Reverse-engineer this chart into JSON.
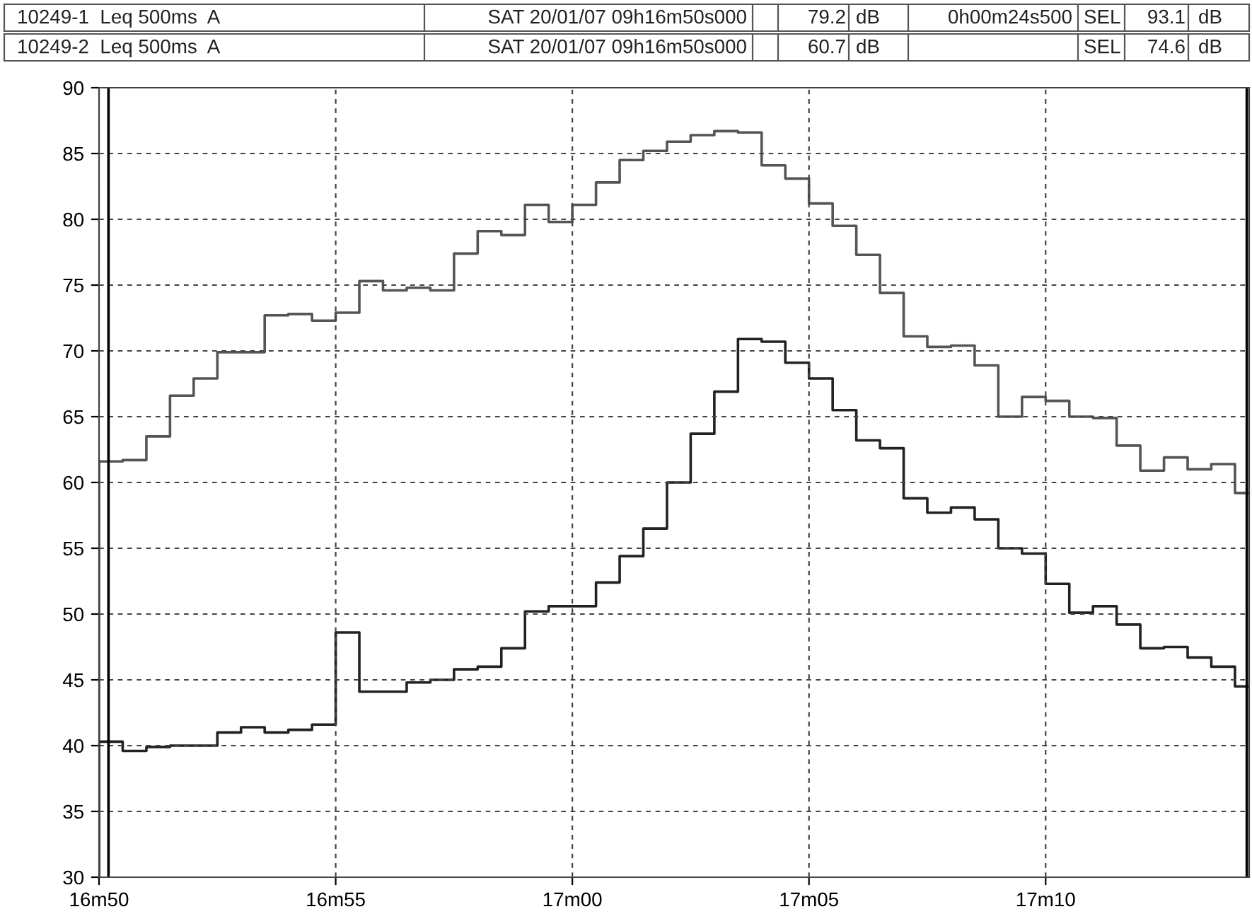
{
  "chart_data": {
    "type": "step",
    "annotations": [
      "10249-1  Leq 500ms  A",
      "SAT 20/01/07 09h16m50s000",
      "79.2",
      "dB",
      "0h00m24s500",
      "SEL",
      "93.1",
      "dB",
      "10249-2  Leq 500ms  A",
      "SAT 20/01/07 09h16m50s000",
      "60.7",
      "dB",
      "SEL",
      "74.6",
      "dB"
    ],
    "categories": [
      "16m50",
      null,
      null,
      null,
      null,
      null,
      null,
      null,
      null,
      null,
      "16m55",
      null,
      null,
      null,
      null,
      null,
      null,
      null,
      null,
      null,
      "17m00",
      null,
      null,
      null,
      null,
      null,
      null,
      null,
      null,
      null,
      "17m05",
      null,
      null,
      null,
      null,
      null,
      null,
      null,
      null,
      null,
      "17m10",
      null,
      null,
      null,
      null,
      null,
      null,
      null,
      null
    ],
    "series": [
      {
        "color": "#555555",
        "values": [
          61.6,
          61.7,
          63.5,
          66.6,
          67.9,
          69.9,
          69.9,
          72.7,
          72.8,
          72.3,
          72.9,
          75.3,
          74.6,
          74.8,
          74.6,
          77.4,
          79.1,
          78.8,
          81.1,
          79.8,
          81.1,
          82.8,
          84.5,
          85.2,
          85.9,
          86.4,
          86.7,
          86.6,
          84.1,
          83.1,
          81.2,
          79.5,
          77.3,
          74.4,
          71.1,
          70.3,
          70.4,
          68.9,
          65.0,
          66.5,
          66.2,
          65.0,
          64.9,
          62.8,
          60.9,
          61.9,
          61.0,
          61.4,
          59.2
        ]
      },
      {
        "color": "#222222",
        "values": [
          40.3,
          39.6,
          39.9,
          40.0,
          40.0,
          41.0,
          41.4,
          41.0,
          41.2,
          41.6,
          48.6,
          44.1,
          44.1,
          44.8,
          45.0,
          45.8,
          46.0,
          47.4,
          50.2,
          50.6,
          50.6,
          52.4,
          54.4,
          56.5,
          60.0,
          63.7,
          66.9,
          70.9,
          70.7,
          69.1,
          67.9,
          65.5,
          63.2,
          62.6,
          58.8,
          57.7,
          58.1,
          57.2,
          55.0,
          54.6,
          52.3,
          50.1,
          50.6,
          49.2,
          47.4,
          47.5,
          46.7,
          46.0,
          44.5
        ]
      }
    ],
    "ylim": [
      30,
      90
    ],
    "yticks": [
      30,
      35,
      40,
      45,
      50,
      55,
      60,
      65,
      70,
      75,
      80,
      85,
      90
    ],
    "grid": true,
    "line_style": "solid",
    "legend": false
  }
}
